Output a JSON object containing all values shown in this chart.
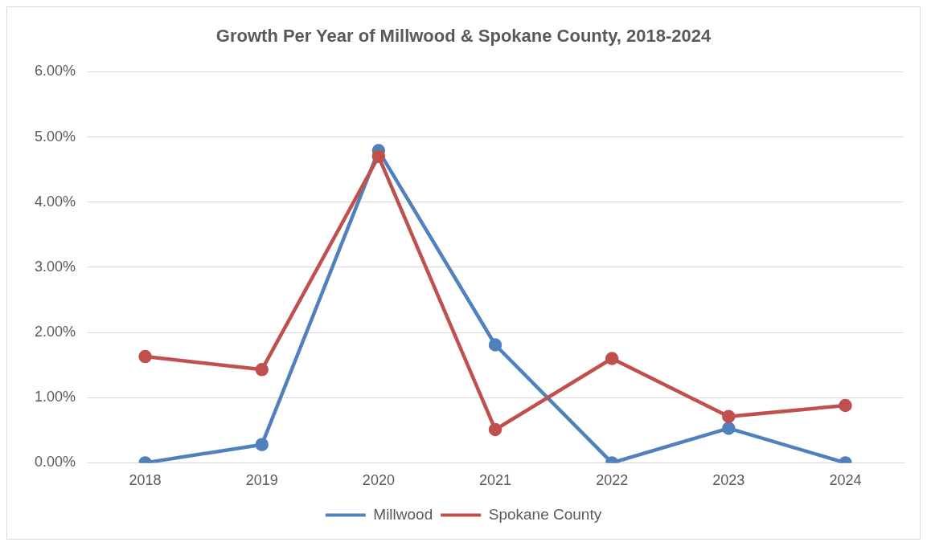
{
  "chart_data": {
    "type": "line",
    "title": "Growth Per Year of Millwood & Spokane County, 2018-2024",
    "categories": [
      "2018",
      "2019",
      "2020",
      "2021",
      "2022",
      "2023",
      "2024"
    ],
    "series": [
      {
        "name": "Millwood",
        "color": "#4f81bd",
        "values": [
          0,
          0.28,
          4.79,
          1.81,
          0,
          0.53,
          0
        ]
      },
      {
        "name": "Spokane County",
        "color": "#c0504d",
        "values": [
          1.63,
          1.43,
          4.7,
          0.51,
          1.6,
          0.71,
          0.88
        ]
      }
    ],
    "ylim": [
      0,
      6
    ],
    "yticks": [
      {
        "value": 0,
        "label": "0.00%"
      },
      {
        "value": 1,
        "label": "1.00%"
      },
      {
        "value": 2,
        "label": "2.00%"
      },
      {
        "value": 3,
        "label": "3.00%"
      },
      {
        "value": 4,
        "label": "4.00%"
      },
      {
        "value": 5,
        "label": "5.00%"
      },
      {
        "value": 6,
        "label": "6.00%"
      }
    ],
    "grid": "y",
    "legend": "bottom",
    "marker": "circle",
    "line_style": "solid"
  }
}
